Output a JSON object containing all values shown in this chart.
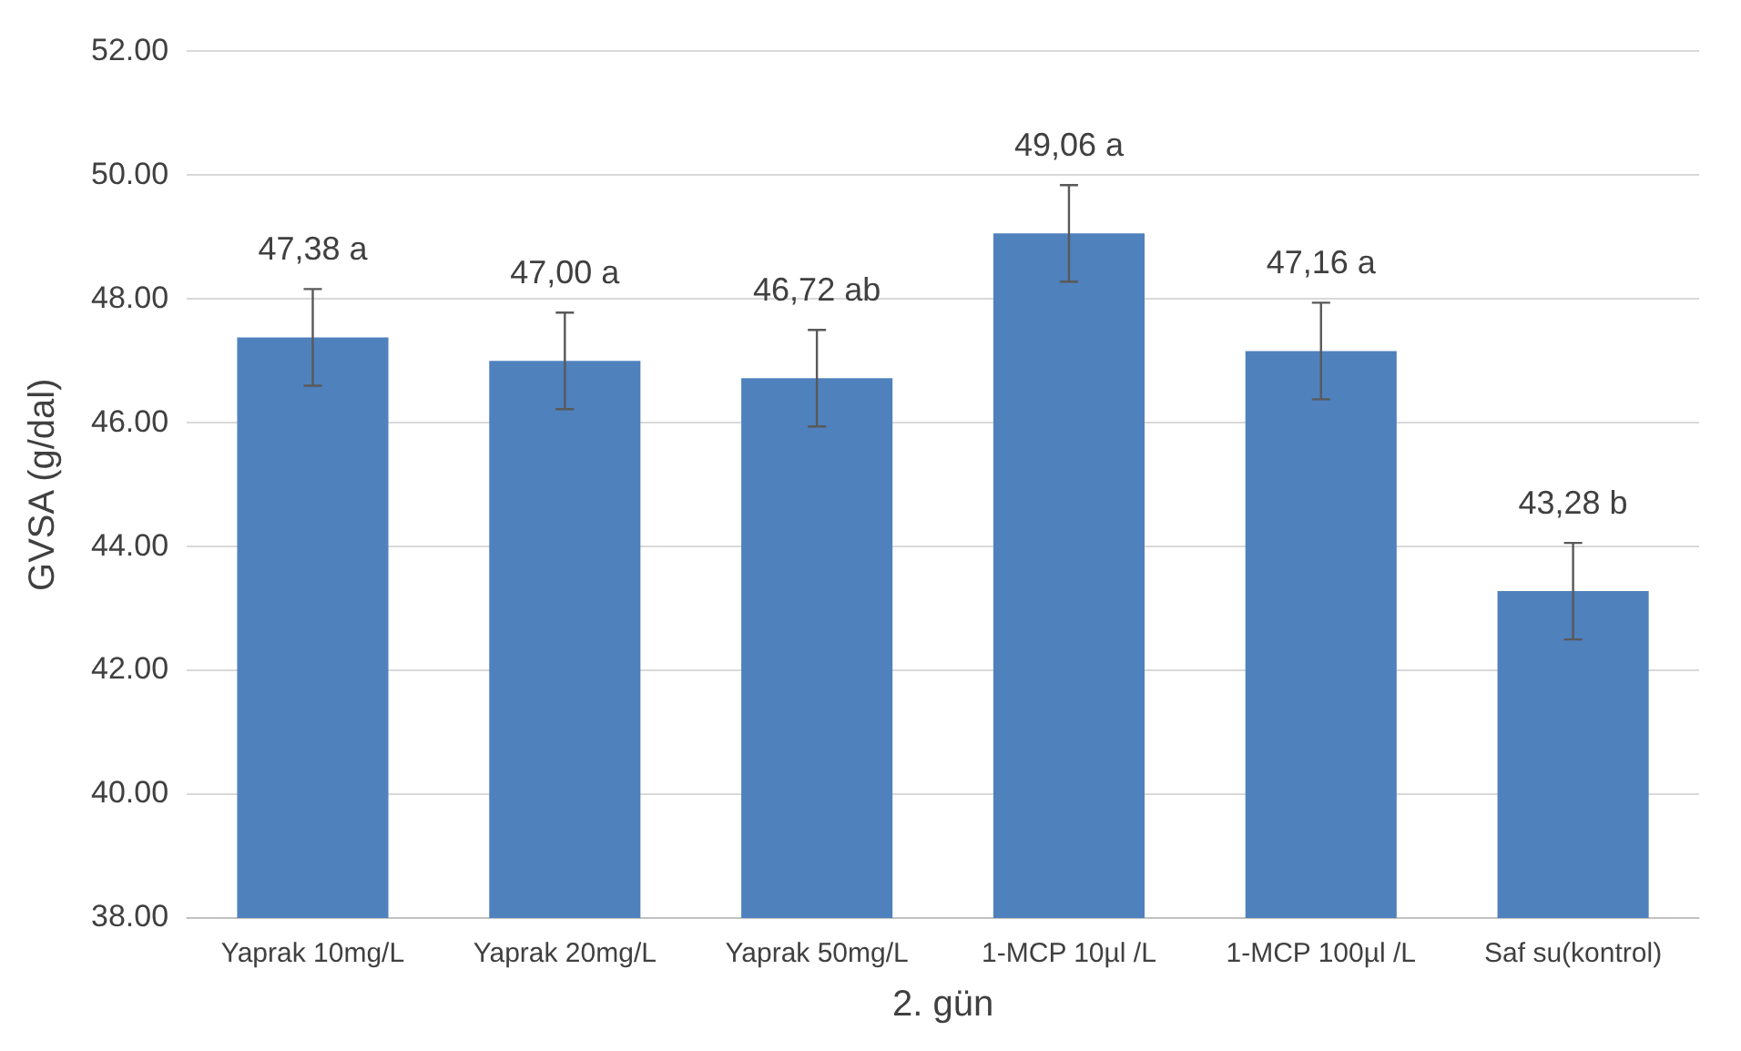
{
  "chart_data": {
    "type": "bar",
    "xlabel": "2. gün",
    "ylabel": "GVSA (g/dal)",
    "categories": [
      "Yaprak 10mg/L",
      "Yaprak 20mg/L",
      "Yaprak 50mg/L",
      "1-MCP 10µl /L",
      "1-MCP 100µl /L",
      "Saf su(kontrol)"
    ],
    "values": [
      47.38,
      47.0,
      46.72,
      49.06,
      47.16,
      43.28
    ],
    "errors": [
      0.78,
      0.78,
      0.78,
      0.78,
      0.78,
      0.78
    ],
    "value_labels": [
      "47,38 a",
      "47,00 a",
      "46,72 ab",
      "49,06 a",
      "47,16 a",
      "43,28 b"
    ],
    "color": "#4f81bd",
    "ylim": [
      38,
      52
    ],
    "yticks": [
      {
        "value": 38,
        "label": "38.00"
      },
      {
        "value": 40,
        "label": "40.00"
      },
      {
        "value": 42,
        "label": "42.00"
      },
      {
        "value": 44,
        "label": "44.00"
      },
      {
        "value": 46,
        "label": "46.00"
      },
      {
        "value": 48,
        "label": "48.00"
      },
      {
        "value": 50,
        "label": "50.00"
      },
      {
        "value": 52,
        "label": "52.00"
      }
    ],
    "grid": "y",
    "legend": false
  }
}
